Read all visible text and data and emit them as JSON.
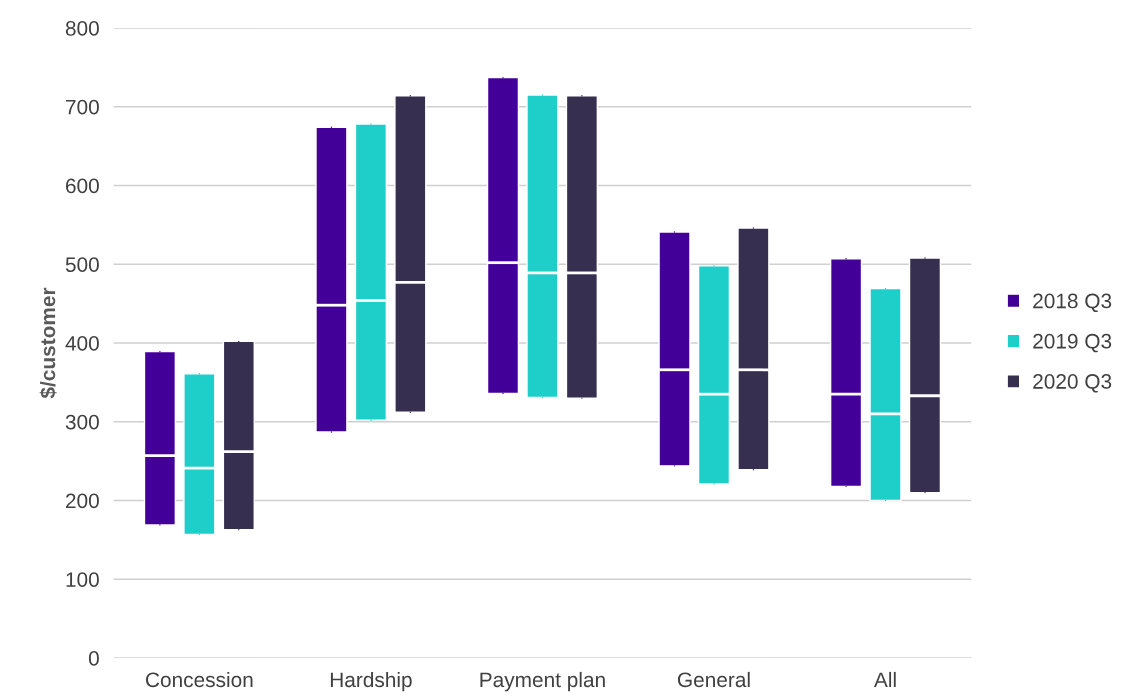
{
  "chart_data": {
    "type": "box",
    "ylabel": "$/customer",
    "categories": [
      "Concession",
      "Hardship",
      "Payment plan",
      "General",
      "All"
    ],
    "ylim": [
      0,
      800
    ],
    "yticks": [
      0,
      100,
      200,
      300,
      400,
      500,
      600,
      700,
      800
    ],
    "grid": "y",
    "legend": "right",
    "series": [
      {
        "name": "2018 Q3",
        "color": "#430099",
        "boxes": [
          {
            "low": 169,
            "q1": 169,
            "median": 257,
            "q3": 389,
            "high": 389
          },
          {
            "low": 287,
            "q1": 287,
            "median": 448,
            "q3": 674,
            "high": 674
          },
          {
            "low": 336,
            "q1": 336,
            "median": 502,
            "q3": 737,
            "high": 737
          },
          {
            "low": 244,
            "q1": 244,
            "median": 366,
            "q3": 541,
            "high": 541
          },
          {
            "low": 218,
            "q1": 218,
            "median": 335,
            "q3": 507,
            "high": 507
          }
        ]
      },
      {
        "name": "2019 Q3",
        "color": "#1ecfc9",
        "boxes": [
          {
            "low": 157,
            "q1": 157,
            "median": 241,
            "q3": 361,
            "high": 361
          },
          {
            "low": 302,
            "q1": 302,
            "median": 454,
            "q3": 678,
            "high": 678
          },
          {
            "low": 331,
            "q1": 331,
            "median": 489,
            "q3": 715,
            "high": 715
          },
          {
            "low": 221,
            "q1": 221,
            "median": 335,
            "q3": 498,
            "high": 498
          },
          {
            "low": 200,
            "q1": 200,
            "median": 310,
            "q3": 469,
            "high": 469
          }
        ]
      },
      {
        "name": "2020 Q3",
        "color": "#362f4f",
        "boxes": [
          {
            "low": 163,
            "q1": 163,
            "median": 262,
            "q3": 402,
            "high": 402
          },
          {
            "low": 312,
            "q1": 312,
            "median": 477,
            "q3": 714,
            "high": 714
          },
          {
            "low": 330,
            "q1": 330,
            "median": 489,
            "q3": 714,
            "high": 714
          },
          {
            "low": 239,
            "q1": 239,
            "median": 366,
            "q3": 546,
            "high": 546
          },
          {
            "low": 210,
            "q1": 210,
            "median": 333,
            "q3": 508,
            "high": 508
          }
        ]
      }
    ]
  }
}
